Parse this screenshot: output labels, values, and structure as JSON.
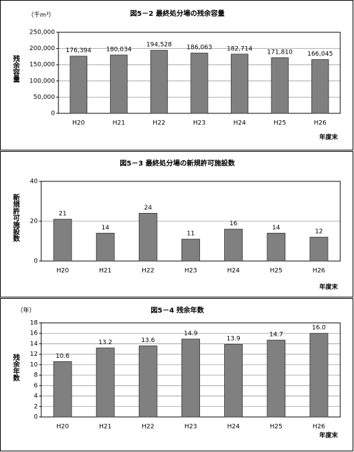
{
  "chart_data": [
    {
      "type": "bar",
      "title": "図5－2 最終処分場の残余容量",
      "unit": "（千m³）",
      "y_label": "残余容量",
      "x_label": "年度末",
      "categories": [
        "H20",
        "H21",
        "H22",
        "H23",
        "H24",
        "H25",
        "H26"
      ],
      "values": [
        176394,
        180034,
        194528,
        186063,
        182714,
        171810,
        166045
      ],
      "value_labels": [
        "176,394",
        "180,034",
        "194,528",
        "186,063",
        "182,714",
        "171,810",
        "166,045"
      ],
      "color": "#808080",
      "ylim": [
        0,
        250000
      ],
      "yticks": [
        0,
        {
          "value": 50000,
          "label": "50,000"
        },
        {
          "value": 100000,
          "label": "100,000"
        },
        {
          "value": 150000,
          "label": "150,000"
        },
        {
          "value": 200000,
          "label": "200,000"
        },
        {
          "value": 250000,
          "label": "250,000"
        }
      ],
      "grid": true
    },
    {
      "type": "bar",
      "title": "図5－3 最終処分場の新規許可施設数",
      "y_label": "新規許可施設数",
      "x_label": "年度末",
      "categories": [
        "H20",
        "H21",
        "H22",
        "H23",
        "H24",
        "H25",
        "H26"
      ],
      "values": [
        21,
        14,
        24,
        11,
        16,
        14,
        12
      ],
      "color": "#808080",
      "ylim": [
        0,
        40
      ],
      "yticks": [
        0,
        20,
        40
      ],
      "grid": true
    },
    {
      "type": "bar",
      "title": "図5－4 残余年数",
      "unit": "（年）",
      "y_label": "残余年数",
      "x_label": "年度末",
      "categories": [
        "H20",
        "H21",
        "H22",
        "H23",
        "H24",
        "H25",
        "H26"
      ],
      "values": [
        10.6,
        13.2,
        13.6,
        14.9,
        13.9,
        14.7,
        16
      ],
      "value_labels": [
        "10.6",
        "13.2",
        "13.6",
        "14.9",
        "13.9",
        "14.7",
        "16.0"
      ],
      "color": "#808080",
      "ylim": [
        0,
        18
      ],
      "yticks": [
        0,
        2,
        4,
        6,
        8,
        10,
        12,
        14,
        16,
        18
      ],
      "grid": true
    }
  ]
}
